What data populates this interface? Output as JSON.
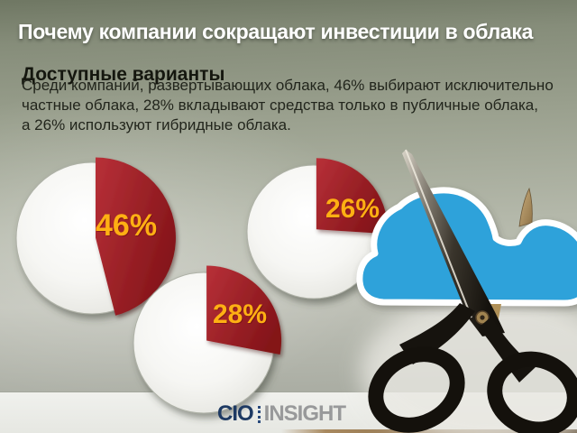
{
  "slide": {
    "title": "Почему компании сокращают инвестиции в облака",
    "section_heading": "Доступные варианты",
    "body_lines": [
      "Среди компаний, развертывающих облака, 46% выбирают исключительно",
      "частные облака, 28% вкладывают средства только в публичные облака,",
      "а 26% используют гибридные облака."
    ]
  },
  "chart_data": {
    "type": "pie",
    "title": "Доступные варианты",
    "unit": "%",
    "direction": "clockwise",
    "start_angle_deg": 0,
    "charts": [
      {
        "label": "46%",
        "value": 46,
        "remainder": 54
      },
      {
        "label": "28%",
        "value": 28,
        "remainder": 72
      },
      {
        "label": "26%",
        "value": 26,
        "remainder": 74
      }
    ],
    "slice_color": "#A22127",
    "disc_color": "#F5F5F2",
    "label_color": "#FFB013"
  },
  "logo": {
    "part1": "CIO",
    "part2": "INSIGHT"
  },
  "colors": {
    "background_top": "#6F7763",
    "background_mid": "#B4B8AA",
    "bottom_bar": "#E9EAE6",
    "title_text": "#FFFFFF",
    "heading_text": "#15170F",
    "cloud_blue": "#2EA2DA",
    "slice_red": "#A22127",
    "percent_yellow": "#FFB013",
    "logo_navy": "#1E3A63",
    "logo_gray": "#98999A"
  }
}
